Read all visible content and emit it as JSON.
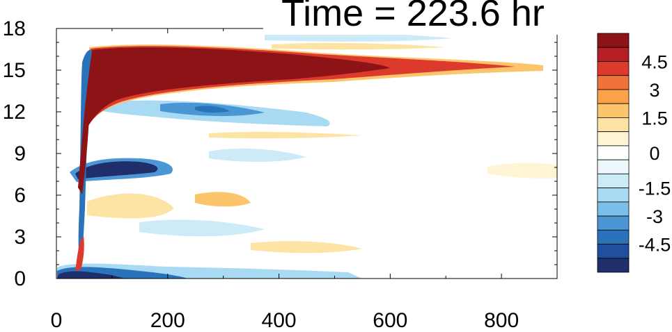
{
  "chart_data": {
    "type": "heatmap",
    "title": "Time = 223.6 hr",
    "xlabel": "",
    "ylabel": "",
    "xlim": [
      0,
      900
    ],
    "ylim": [
      0,
      18
    ],
    "x_ticks": [
      0,
      200,
      400,
      600,
      800
    ],
    "y_ticks": [
      0,
      3,
      6,
      9,
      12,
      15,
      18
    ],
    "colorbar": {
      "levels": [
        -5.25,
        -4.5,
        -3.75,
        -3,
        -2.25,
        -1.5,
        -0.75,
        -0.25,
        0.25,
        0.75,
        1.5,
        2.25,
        3,
        3.75,
        4.5,
        5.25
      ],
      "tick_labels": [
        "4.5",
        "3",
        "1.5",
        "0",
        "-1.5",
        "-3",
        "-4.5"
      ],
      "tick_values": [
        4.5,
        3,
        1.5,
        0,
        -1.5,
        -3,
        -4.5
      ],
      "colors": [
        "#1e2f6b",
        "#1f4f9e",
        "#2a73ba",
        "#4b97d3",
        "#7bbfe8",
        "#a9daf3",
        "#cdeaf8",
        "#ecf7fc",
        "#ffffff",
        "#fff4d4",
        "#fde3a4",
        "#fcc56c",
        "#f9a24a",
        "#f0733a",
        "#dd3a2e",
        "#b51f24",
        "#8c1417"
      ]
    },
    "features": [
      {
        "name": "strong positive band",
        "x": [
          75,
          870
        ],
        "y": [
          13.5,
          16.8
        ],
        "value": 5.5
      },
      {
        "name": "negative band",
        "x": [
          90,
          480
        ],
        "y": [
          11.5,
          13.2
        ],
        "value": -2.5
      },
      {
        "name": "strong negative band",
        "x": [
          80,
          180
        ],
        "y": [
          6.8,
          8.6
        ],
        "value": -5.0
      },
      {
        "name": "weak positive patch",
        "x": [
          100,
          250
        ],
        "y": [
          4.0,
          6.0
        ],
        "value": 1.5
      },
      {
        "name": "negative surface band",
        "x": [
          40,
          500
        ],
        "y": [
          0.0,
          1.2
        ],
        "value": -3.5
      }
    ]
  }
}
